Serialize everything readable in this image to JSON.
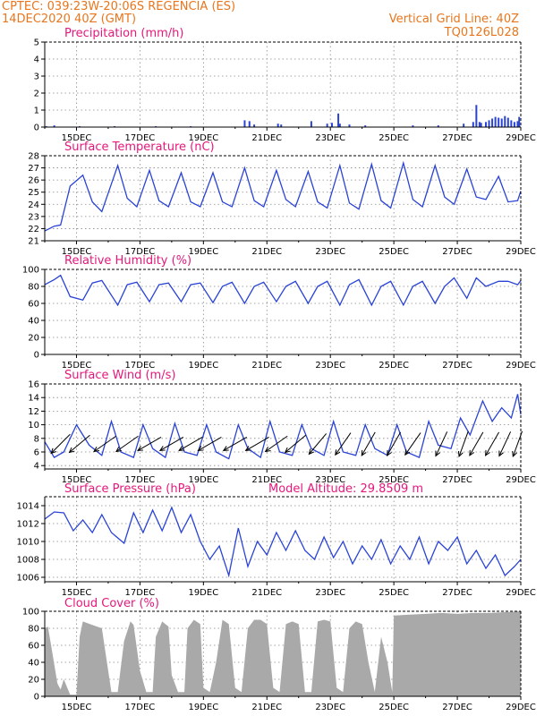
{
  "header": {
    "station": "CPTEC:   039:23W-20:06S   REGENCIA (ES)",
    "init_time": "14DEC2020 40Z (GMT)",
    "grid_note": "Vertical Grid Line: 40Z",
    "run_code": "TQ0126L028"
  },
  "model_altitude_label": "Model Altitude: 29.8509 m",
  "colors": {
    "header": "#e8761e",
    "title": "#e6177b",
    "line": "#2a43d6",
    "bar": "#2a43d6",
    "arrow": "#000000",
    "cloud": "#a9a9a9"
  },
  "chart_data": [
    {
      "type": "bar",
      "title": "Precipitation (mm/h)",
      "x_range": [
        14,
        29
      ],
      "ylim": [
        0,
        5
      ],
      "y_ticks": [
        "0",
        "1",
        "2",
        "3",
        "4",
        "5"
      ],
      "x_ticks": [
        "15DEC",
        "17DEC",
        "19DEC",
        "21DEC",
        "23DEC",
        "25DEC",
        "27DEC",
        "29DEC"
      ],
      "grid": true,
      "x": [
        14.05,
        14.3,
        15.1,
        16.2,
        17.5,
        18.6,
        20.3,
        20.45,
        20.6,
        21.35,
        21.45,
        22.4,
        22.9,
        23.05,
        23.25,
        23.3,
        23.6,
        24.1,
        25.6,
        26.4,
        27.2,
        27.5,
        27.6,
        27.7,
        27.75,
        27.9,
        28.0,
        28.1,
        28.2,
        28.3,
        28.4,
        28.5,
        28.6,
        28.7,
        28.8,
        28.9,
        28.95
      ],
      "values": [
        0.05,
        0.1,
        0.05,
        0.05,
        0.05,
        0.05,
        0.4,
        0.35,
        0.15,
        0.2,
        0.15,
        0.35,
        0.2,
        0.25,
        0.8,
        0.2,
        0.15,
        0.1,
        0.1,
        0.1,
        0.2,
        0.3,
        1.3,
        0.3,
        0.25,
        0.3,
        0.4,
        0.5,
        0.6,
        0.55,
        0.5,
        0.65,
        0.55,
        0.4,
        0.3,
        0.35,
        0.6
      ]
    },
    {
      "type": "line",
      "title": "Surface Temperature (nC)",
      "x_range": [
        14,
        29
      ],
      "ylim": [
        21,
        28
      ],
      "y_ticks": [
        "21",
        "22",
        "23",
        "24",
        "25",
        "26",
        "27",
        "28"
      ],
      "x_ticks": [
        "15DEC",
        "17DEC",
        "19DEC",
        "21DEC",
        "23DEC",
        "25DEC",
        "27DEC",
        "29DEC"
      ],
      "grid": true,
      "x": [
        14.0,
        14.3,
        14.5,
        14.8,
        15.2,
        15.5,
        15.8,
        16.3,
        16.6,
        16.9,
        17.3,
        17.6,
        17.9,
        18.3,
        18.6,
        18.9,
        19.3,
        19.6,
        19.9,
        20.3,
        20.6,
        20.9,
        21.3,
        21.6,
        21.9,
        22.3,
        22.6,
        22.9,
        23.3,
        23.6,
        23.9,
        24.3,
        24.6,
        24.9,
        25.3,
        25.6,
        25.9,
        26.3,
        26.6,
        26.9,
        27.3,
        27.6,
        27.9,
        28.3,
        28.6,
        28.9,
        29.0
      ],
      "values": [
        21.8,
        22.2,
        22.3,
        25.5,
        26.4,
        24.2,
        23.4,
        27.2,
        24.5,
        23.8,
        26.8,
        24.3,
        23.8,
        26.6,
        24.2,
        23.8,
        26.6,
        24.2,
        23.8,
        27.0,
        24.3,
        23.8,
        26.8,
        24.4,
        23.8,
        26.7,
        24.2,
        23.7,
        27.2,
        24.1,
        23.6,
        27.3,
        24.3,
        23.7,
        27.4,
        24.4,
        23.8,
        27.2,
        24.6,
        24.0,
        26.9,
        24.6,
        24.4,
        26.3,
        24.2,
        24.3,
        25.1
      ]
    },
    {
      "type": "line",
      "title": "Relative Humidity (%)",
      "x_range": [
        14,
        29
      ],
      "ylim": [
        0,
        100
      ],
      "y_ticks": [
        "0",
        "20",
        "40",
        "60",
        "80",
        "100"
      ],
      "x_ticks": [
        "15DEC",
        "17DEC",
        "19DEC",
        "21DEC",
        "23DEC",
        "25DEC",
        "27DEC",
        "29DEC"
      ],
      "grid": true,
      "x": [
        14.0,
        14.3,
        14.5,
        14.8,
        15.2,
        15.5,
        15.8,
        16.3,
        16.6,
        16.9,
        17.3,
        17.6,
        17.9,
        18.3,
        18.6,
        18.9,
        19.3,
        19.6,
        19.9,
        20.3,
        20.6,
        20.9,
        21.3,
        21.6,
        21.9,
        22.3,
        22.6,
        22.9,
        23.3,
        23.6,
        23.9,
        24.3,
        24.6,
        24.9,
        25.3,
        25.6,
        25.9,
        26.3,
        26.6,
        26.9,
        27.3,
        27.6,
        27.9,
        28.3,
        28.6,
        28.9,
        29.0
      ],
      "values": [
        82,
        88,
        93,
        68,
        64,
        84,
        87,
        58,
        82,
        85,
        62,
        82,
        84,
        62,
        82,
        84,
        61,
        80,
        85,
        60,
        80,
        85,
        62,
        80,
        86,
        60,
        80,
        86,
        58,
        82,
        88,
        58,
        80,
        86,
        58,
        80,
        86,
        60,
        80,
        90,
        66,
        90,
        80,
        86,
        86,
        82,
        87
      ]
    },
    {
      "type": "line",
      "title": "Surface Wind (m/s)",
      "x_range": [
        14,
        29
      ],
      "ylim": [
        3.5,
        16
      ],
      "y_ticks": [
        "4",
        "6",
        "8",
        "10",
        "12",
        "14",
        "16"
      ],
      "x_ticks": [
        "15DEC",
        "17DEC",
        "19DEC",
        "21DEC",
        "23DEC",
        "25DEC",
        "27DEC",
        "29DEC"
      ],
      "grid": true,
      "x": [
        14.0,
        14.3,
        14.6,
        15.0,
        15.4,
        15.8,
        16.1,
        16.4,
        16.8,
        17.1,
        17.4,
        17.8,
        18.1,
        18.4,
        18.8,
        19.1,
        19.4,
        19.8,
        20.1,
        20.4,
        20.8,
        21.1,
        21.4,
        21.8,
        22.1,
        22.4,
        22.8,
        23.1,
        23.4,
        23.8,
        24.1,
        24.4,
        24.8,
        25.1,
        25.4,
        25.8,
        26.1,
        26.4,
        26.8,
        27.1,
        27.4,
        27.8,
        28.1,
        28.4,
        28.7,
        28.9,
        29.0
      ],
      "values": [
        7.5,
        5.2,
        6.0,
        10.0,
        7.0,
        5.5,
        10.5,
        6.0,
        5.2,
        10.0,
        6.5,
        5.2,
        10.2,
        6.0,
        5.5,
        10.0,
        6.0,
        5.0,
        10.0,
        6.5,
        5.2,
        10.5,
        6.0,
        5.5,
        10.0,
        6.5,
        5.5,
        10.5,
        6.0,
        5.5,
        10.0,
        6.5,
        5.5,
        10.0,
        6.0,
        5.2,
        10.5,
        7.0,
        6.5,
        11.0,
        8.5,
        13.5,
        10.5,
        12.5,
        11.0,
        14.5,
        11.5
      ],
      "wind_arrows_x": [
        14.5,
        15.1,
        15.9,
        16.6,
        17.3,
        18.0,
        18.6,
        19.2,
        20.0,
        20.7,
        21.3,
        21.9,
        22.6,
        23.4,
        24.2,
        25.0,
        25.6,
        26.5,
        27.2,
        27.6,
        28.1,
        28.5,
        28.9
      ],
      "wind_arrows_dir_deg": [
        45,
        40,
        35,
        35,
        30,
        30,
        30,
        30,
        30,
        30,
        35,
        40,
        50,
        55,
        60,
        60,
        55,
        65,
        70,
        60,
        60,
        65,
        70
      ]
    },
    {
      "type": "line",
      "title": "Surface Pressure (hPa)",
      "x_range": [
        14,
        29
      ],
      "ylim": [
        1005.5,
        1015
      ],
      "y_ticks": [
        "1006",
        "1008",
        "1010",
        "1012",
        "1014"
      ],
      "x_ticks": [
        "15DEC",
        "17DEC",
        "19DEC",
        "21DEC",
        "23DEC",
        "25DEC",
        "27DEC",
        "29DEC"
      ],
      "grid": true,
      "x": [
        14.0,
        14.3,
        14.6,
        14.9,
        15.2,
        15.5,
        15.8,
        16.1,
        16.5,
        16.8,
        17.1,
        17.4,
        17.7,
        18.0,
        18.3,
        18.6,
        18.9,
        19.2,
        19.5,
        19.8,
        20.1,
        20.4,
        20.7,
        21.0,
        21.3,
        21.6,
        21.9,
        22.2,
        22.5,
        22.8,
        23.1,
        23.4,
        23.7,
        24.0,
        24.3,
        24.6,
        24.9,
        25.2,
        25.5,
        25.8,
        26.1,
        26.4,
        26.7,
        27.0,
        27.3,
        27.6,
        27.9,
        28.2,
        28.5,
        28.8,
        29.0
      ],
      "values": [
        1012.5,
        1013.3,
        1013.2,
        1011.2,
        1012.4,
        1011.0,
        1013.0,
        1011.0,
        1009.8,
        1013.2,
        1011.0,
        1013.5,
        1011.2,
        1013.8,
        1011.0,
        1013.0,
        1010.0,
        1008.0,
        1009.5,
        1006.2,
        1011.5,
        1007.2,
        1010.0,
        1008.5,
        1011.0,
        1009.0,
        1011.2,
        1009.0,
        1008.0,
        1010.5,
        1008.2,
        1010.0,
        1007.5,
        1009.5,
        1008.0,
        1010.2,
        1007.5,
        1009.5,
        1008.0,
        1010.5,
        1007.5,
        1010.0,
        1009.0,
        1010.5,
        1007.5,
        1009.0,
        1007.0,
        1008.5,
        1006.2,
        1007.2,
        1008.0
      ]
    },
    {
      "type": "area",
      "title": "Cloud Cover (%)",
      "x_range": [
        14,
        29
      ],
      "ylim": [
        0,
        100
      ],
      "y_ticks": [
        "0",
        "20",
        "40",
        "60",
        "80",
        "100"
      ],
      "x_ticks": [
        "15DEC",
        "17DEC",
        "19DEC",
        "21DEC",
        "23DEC",
        "25DEC",
        "27DEC",
        "29DEC"
      ],
      "grid": true,
      "x": [
        14.0,
        14.1,
        14.2,
        14.4,
        14.5,
        14.6,
        14.8,
        15.0,
        15.1,
        15.2,
        15.5,
        15.8,
        16.0,
        16.1,
        16.3,
        16.5,
        16.7,
        16.8,
        17.0,
        17.2,
        17.4,
        17.5,
        17.7,
        17.9,
        18.0,
        18.2,
        18.4,
        18.5,
        18.7,
        18.9,
        19.0,
        19.2,
        19.4,
        19.6,
        19.8,
        20.0,
        20.2,
        20.4,
        20.6,
        20.8,
        21.0,
        21.2,
        21.4,
        21.6,
        21.8,
        22.0,
        22.2,
        22.4,
        22.6,
        22.8,
        23.0,
        23.2,
        23.4,
        23.6,
        23.8,
        24.0,
        24.2,
        24.4,
        24.6,
        24.8,
        24.95,
        25.0,
        25.5,
        26.0,
        26.5,
        27.0,
        27.5,
        28.0,
        28.5,
        29.0
      ],
      "values": [
        80,
        82,
        60,
        15,
        8,
        20,
        2,
        2,
        70,
        88,
        84,
        80,
        30,
        5,
        5,
        65,
        88,
        84,
        30,
        5,
        5,
        70,
        88,
        82,
        25,
        5,
        5,
        80,
        90,
        85,
        10,
        5,
        40,
        90,
        85,
        10,
        5,
        80,
        90,
        90,
        85,
        10,
        5,
        85,
        88,
        85,
        5,
        5,
        88,
        90,
        88,
        10,
        5,
        80,
        88,
        85,
        40,
        5,
        70,
        40,
        5,
        95,
        96,
        97,
        98,
        97,
        98,
        98,
        99,
        100
      ]
    }
  ]
}
